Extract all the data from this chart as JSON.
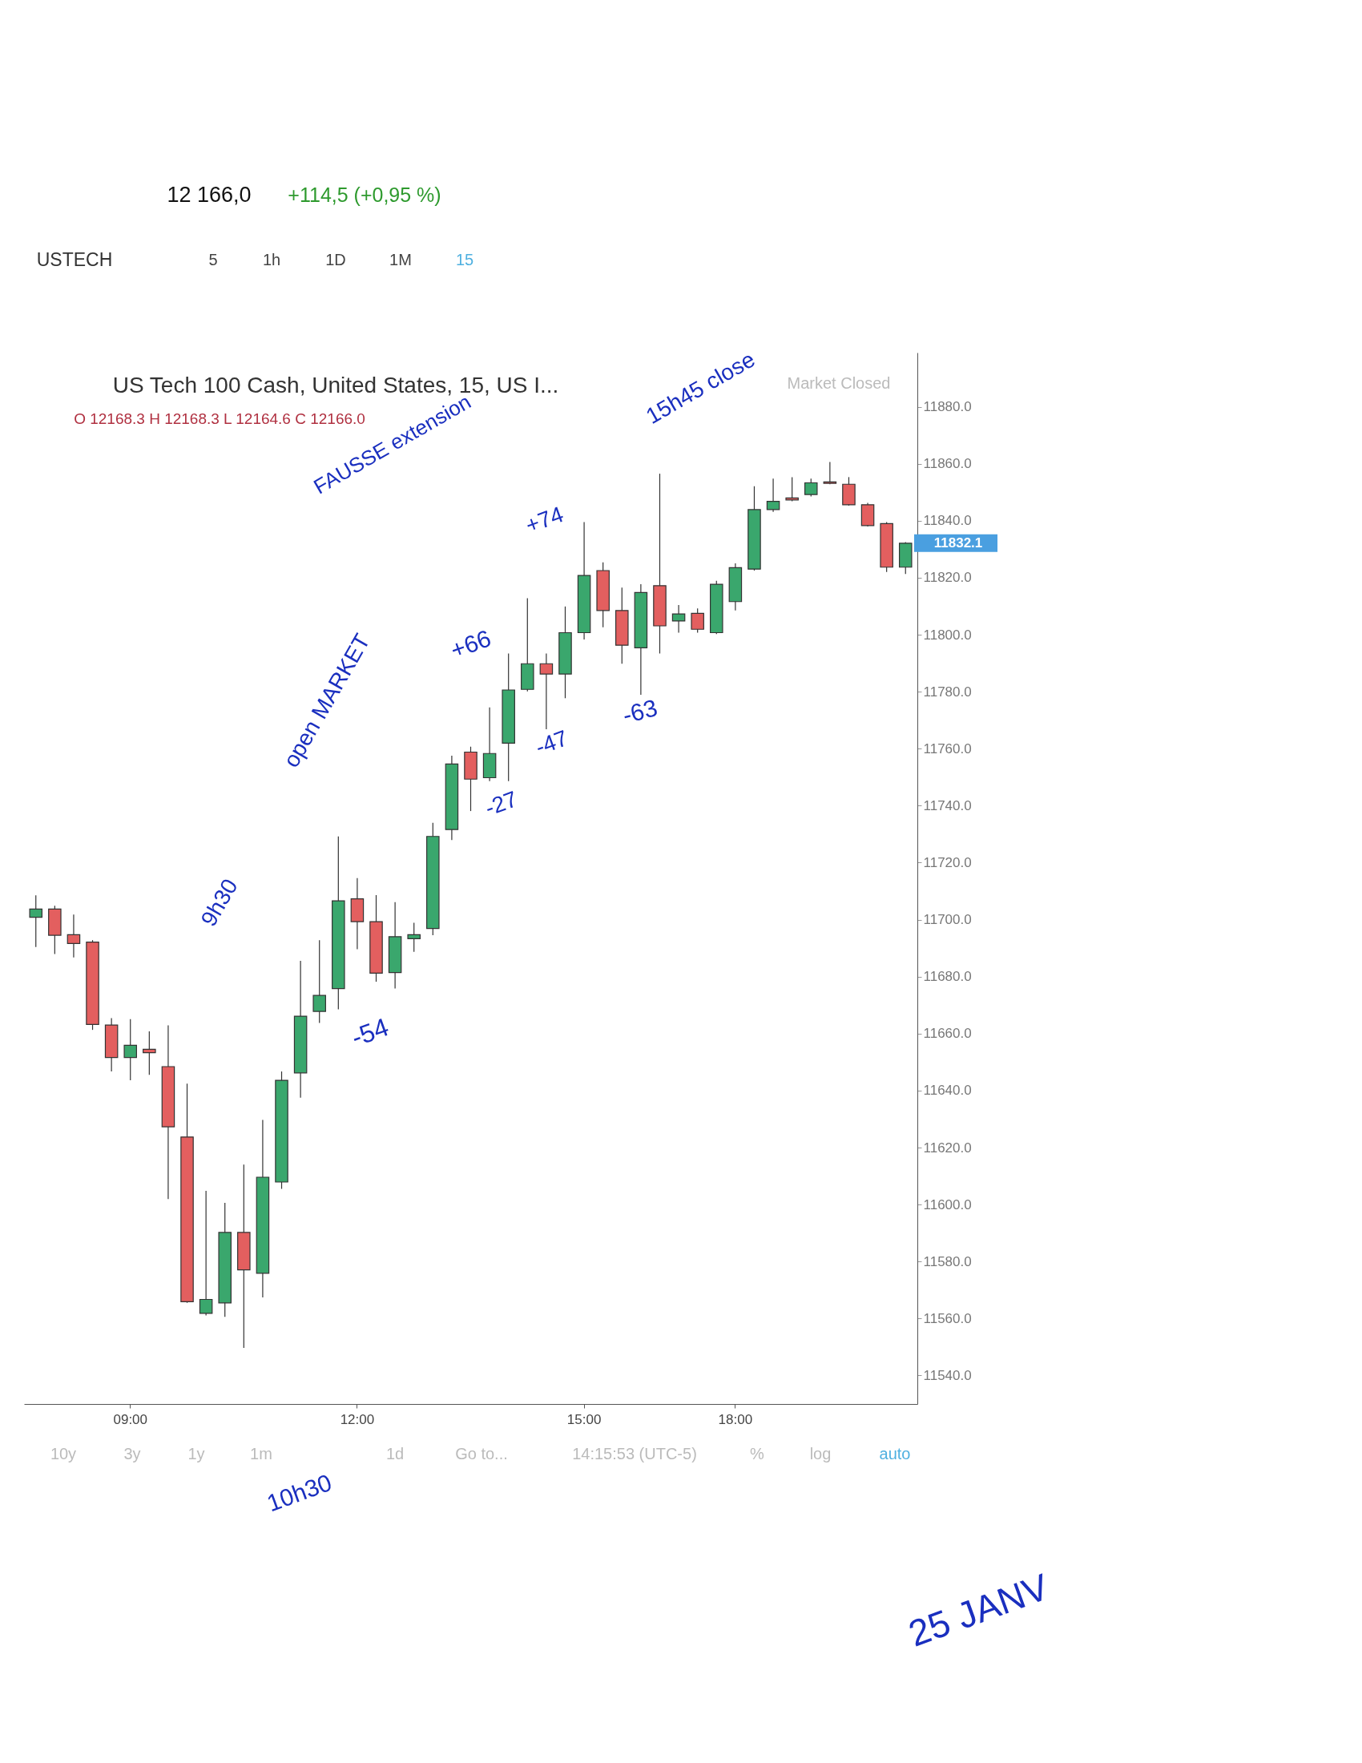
{
  "chart_data": {
    "type": "candlestick",
    "title": "US Tech 100 Cash, United States, 15, US I...",
    "subtitle": "O 12168.3  H 12168.3  L 12164.6  C 12166.0",
    "categories": [
      null,
      null,
      null,
      null,
      null,
      "09:00",
      null,
      null,
      null,
      null,
      null,
      null,
      null,
      null,
      null,
      null,
      null,
      "12:00",
      null,
      null,
      null,
      null,
      null,
      null,
      null,
      null,
      null,
      null,
      null,
      "15:00",
      null,
      null,
      null,
      null,
      null,
      null,
      null,
      "18:00",
      null,
      null,
      null,
      null,
      null,
      null,
      null,
      null,
      null
    ],
    "ohlc": [
      [
        11700.8,
        11708.5,
        11690.4,
        11703.7
      ],
      [
        11703.7,
        11704.9,
        11687.9,
        11694.5
      ],
      [
        11694.7,
        11701.8,
        11686.7,
        11691.6
      ],
      [
        11692.1,
        11692.8,
        11661.3,
        11663.2
      ],
      [
        11663.0,
        11665.4,
        11646.7,
        11651.6
      ],
      [
        11651.6,
        11665.1,
        11643.6,
        11655.9
      ],
      [
        11654.5,
        11660.8,
        11645.5,
        11653.3
      ],
      [
        11648.4,
        11662.9,
        11601.9,
        11627.3
      ],
      [
        11623.7,
        11642.4,
        11565.5,
        11565.9
      ],
      [
        11561.8,
        11604.8,
        11561.1,
        11566.7
      ],
      [
        11565.5,
        11600.6,
        11560.6,
        11590.2
      ],
      [
        11590.2,
        11614.0,
        11549.7,
        11577.1
      ],
      [
        11575.9,
        11629.7,
        11567.4,
        11609.6
      ],
      [
        11607.9,
        11646.7,
        11605.5,
        11643.6
      ],
      [
        11646.2,
        11685.5,
        11637.5,
        11666.1
      ],
      [
        11667.8,
        11692.8,
        11663.7,
        11673.4
      ],
      [
        11675.8,
        11729.2,
        11668.5,
        11706.6
      ],
      [
        11707.3,
        11714.6,
        11689.6,
        11699.3
      ],
      [
        11699.3,
        11708.6,
        11678.2,
        11681.2
      ],
      [
        11681.4,
        11706.1,
        11675.8,
        11694.0
      ],
      [
        11693.3,
        11698.9,
        11688.7,
        11694.7
      ],
      [
        11696.9,
        11734.0,
        11694.5,
        11729.2
      ],
      [
        11731.6,
        11757.5,
        11727.9,
        11754.6
      ],
      [
        11758.8,
        11760.7,
        11738.1,
        11749.3
      ],
      [
        11749.8,
        11774.5,
        11748.6,
        11758.3
      ],
      [
        11761.9,
        11793.4,
        11748.6,
        11780.6
      ],
      [
        11780.8,
        11812.8,
        11780.1,
        11789.8
      ],
      [
        11789.8,
        11793.4,
        11766.8,
        11786.2
      ],
      [
        11786.2,
        11809.9,
        11777.7,
        11800.7
      ],
      [
        11800.7,
        11839.5,
        11798.3,
        11820.8
      ],
      [
        11822.5,
        11825.4,
        11802.6,
        11808.5
      ],
      [
        11808.5,
        11816.5,
        11789.8,
        11796.3
      ],
      [
        11795.4,
        11817.7,
        11778.9,
        11814.8
      ],
      [
        11817.2,
        11856.5,
        11793.4,
        11803.1
      ],
      [
        11804.8,
        11810.4,
        11800.7,
        11807.3
      ],
      [
        11807.5,
        11809.2,
        11800.7,
        11801.9
      ],
      [
        11800.7,
        11818.9,
        11800.2,
        11817.7
      ],
      [
        11811.6,
        11825.0,
        11808.5,
        11823.5
      ],
      [
        11823.0,
        11852.1,
        11822.5,
        11843.9
      ],
      [
        11843.9,
        11854.8,
        11843.1,
        11846.8
      ],
      [
        11848.0,
        11855.3,
        11846.8,
        11847.3
      ],
      [
        11849.2,
        11854.8,
        11848.5,
        11853.3
      ],
      [
        11853.6,
        11860.6,
        11852.8,
        11853.1
      ],
      [
        11852.8,
        11855.3,
        11845.3,
        11845.6
      ],
      [
        11845.6,
        11846.3,
        11838.0,
        11838.3
      ],
      [
        11839.0,
        11839.5,
        11822.0,
        11823.7
      ],
      [
        11823.7,
        11832.5,
        11821.3,
        11832.1
      ]
    ],
    "colors": [
      "#3aa76d",
      "#e35f5f",
      "#e35f5f",
      "#e35f5f",
      "#e35f5f",
      "#3aa76d",
      "#e35f5f",
      "#e35f5f",
      "#e35f5f",
      "#3aa76d",
      "#3aa76d",
      "#e35f5f",
      "#3aa76d",
      "#3aa76d",
      "#3aa76d",
      "#3aa76d",
      "#3aa76d",
      "#e35f5f",
      "#e35f5f",
      "#3aa76d",
      "#3aa76d",
      "#3aa76d",
      "#3aa76d",
      "#e35f5f",
      "#3aa76d",
      "#3aa76d",
      "#3aa76d",
      "#e35f5f",
      "#3aa76d",
      "#3aa76d",
      "#e35f5f",
      "#e35f5f",
      "#3aa76d",
      "#e35f5f",
      "#3aa76d",
      "#e35f5f",
      "#3aa76d",
      "#3aa76d",
      "#3aa76d",
      "#3aa76d",
      "#e35f5f",
      "#3aa76d",
      "#e35f5f",
      "#e35f5f",
      "#e35f5f",
      "#e35f5f",
      "#3aa76d"
    ],
    "ylim": [
      11530,
      11899
    ],
    "yticks": [
      {
        "value": 11540,
        "label": "11540.0"
      },
      {
        "value": 11560,
        "label": "11560.0"
      },
      {
        "value": 11580,
        "label": "11580.0"
      },
      {
        "value": 11600,
        "label": "11600.0"
      },
      {
        "value": 11620,
        "label": "11620.0"
      },
      {
        "value": 11640,
        "label": "11640.0"
      },
      {
        "value": 11660,
        "label": "11660.0"
      },
      {
        "value": 11680,
        "label": "11680.0"
      },
      {
        "value": 11700,
        "label": "11700.0"
      },
      {
        "value": 11720,
        "label": "11720.0"
      },
      {
        "value": 11740,
        "label": "11740.0"
      },
      {
        "value": 11760,
        "label": "11760.0"
      },
      {
        "value": 11780,
        "label": "11780.0"
      },
      {
        "value": 11800,
        "label": "11800.0"
      },
      {
        "value": 11820,
        "label": "11820.0"
      },
      {
        "value": 11840,
        "label": "11840.0"
      },
      {
        "value": 11860,
        "label": "11860.0"
      },
      {
        "value": 11880,
        "label": "11880.0"
      }
    ],
    "ref_lines": [
      {
        "axis": "y",
        "value": 11832.1,
        "label": "11832.1",
        "color": "#4a9fe0"
      }
    ],
    "annotations": [
      "12 166,0",
      "+114,5 (+0,95 %)",
      "USTECH",
      "5",
      "1h",
      "1D",
      "1M",
      "15",
      "Market Closed",
      "10y",
      "3y",
      "1y",
      "1m",
      "1d",
      "Go to...",
      "14:15:53 (UTC-5)",
      "%",
      "log",
      "auto",
      "FAUSSE extension",
      "+74",
      "15h45 close",
      "+66",
      "-27",
      "-47",
      "-63",
      "-54",
      "open MARKET",
      "9h30",
      "10h30",
      "25 JANV"
    ]
  }
}
